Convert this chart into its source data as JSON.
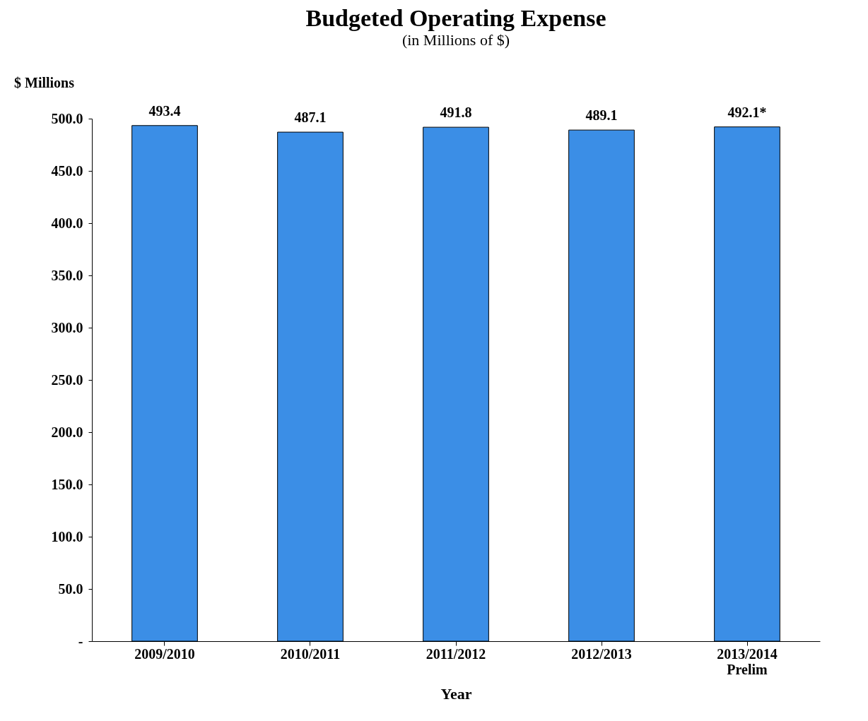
{
  "chart_data": {
    "type": "bar",
    "title": "Budgeted Operating Expense",
    "subtitle": "(in Millions of $)",
    "ylabel": "$ Millions",
    "xlabel": "Year",
    "categories": [
      "2009/2010",
      "2010/2011",
      "2011/2012",
      "2012/2013",
      "2013/2014\nPrelim"
    ],
    "values": [
      493.4,
      487.1,
      491.8,
      489.1,
      492.1
    ],
    "value_labels": [
      "493.4",
      "487.1",
      "491.8",
      "489.1",
      "492.1*"
    ],
    "color": "#3b8ee6",
    "ylim": [
      0,
      500
    ],
    "yticks": [
      {
        "value": 0,
        "label": "-"
      },
      {
        "value": 50,
        "label": "50.0"
      },
      {
        "value": 100,
        "label": "100.0"
      },
      {
        "value": 150,
        "label": "150.0"
      },
      {
        "value": 200,
        "label": "200.0"
      },
      {
        "value": 250,
        "label": "250.0"
      },
      {
        "value": 300,
        "label": "300.0"
      },
      {
        "value": 350,
        "label": "350.0"
      },
      {
        "value": 400,
        "label": "400.0"
      },
      {
        "value": 450,
        "label": "450.0"
      },
      {
        "value": 500,
        "label": "500.0"
      }
    ],
    "grid": false
  }
}
